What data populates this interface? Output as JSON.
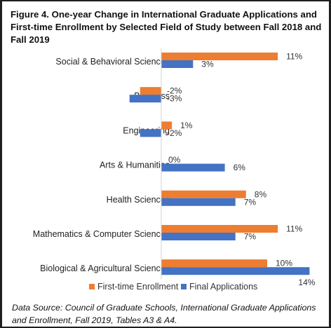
{
  "figure": {
    "title": "Figure 4. One-year Change in International Graduate Applications and First-time Enrollment by Selected Field of Study between Fall 2018 and Fall 2019",
    "source": "Data Source: Council of Graduate Schools, International Graduate Applications and Enrollment, Fall 2019, Tables A3 & A4."
  },
  "colors": {
    "enrollment": "#ED7D31",
    "applications": "#4472C4"
  },
  "chart_data": {
    "type": "bar",
    "orientation": "horizontal",
    "categories": [
      "Social & Behavioral Sciences",
      "Business",
      "Engineering",
      "Arts & Humanities",
      "Health Sciences",
      "Mathematics & Computer Sciences",
      "Biological & Agricultural Sciences"
    ],
    "series": [
      {
        "name": "First-time Enrollment",
        "values": [
          11,
          -2,
          1,
          0,
          8,
          11,
          10
        ],
        "labels": [
          "11%",
          "-2%",
          "1%",
          "0%",
          "8%",
          "11%",
          "10%"
        ]
      },
      {
        "name": "Final Applications",
        "values": [
          3,
          -3,
          -2,
          6,
          7,
          7,
          14
        ],
        "labels": [
          "3%",
          "-3%",
          "-2%",
          "6%",
          "7%",
          "7%",
          "14%"
        ]
      }
    ],
    "unit": "%",
    "legend_position": "bottom",
    "grid": false,
    "xlim": [
      -4,
      15
    ]
  }
}
